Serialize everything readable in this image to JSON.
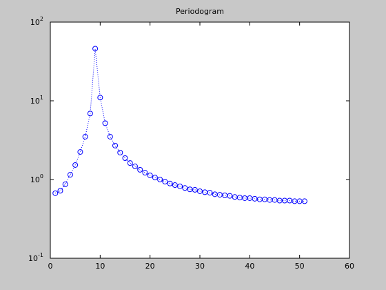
{
  "chart_data": {
    "type": "line",
    "title": "Periodogram",
    "x": [
      1,
      2,
      3,
      4,
      5,
      6,
      7,
      8,
      9,
      10,
      11,
      12,
      13,
      14,
      15,
      16,
      17,
      18,
      19,
      20,
      21,
      22,
      23,
      24,
      25,
      26,
      27,
      28,
      29,
      30,
      31,
      32,
      33,
      34,
      35,
      36,
      37,
      38,
      39,
      40,
      41,
      42,
      43,
      44,
      45,
      46,
      47,
      48,
      49,
      50,
      51
    ],
    "series": [
      {
        "color": "#0000ff",
        "values": [
          0.67,
          0.72,
          0.87,
          1.15,
          1.53,
          2.24,
          3.5,
          6.9,
          46,
          11,
          5.2,
          3.5,
          2.7,
          2.2,
          1.87,
          1.62,
          1.47,
          1.33,
          1.22,
          1.13,
          1.06,
          1.0,
          0.94,
          0.89,
          0.85,
          0.82,
          0.78,
          0.75,
          0.74,
          0.71,
          0.69,
          0.68,
          0.65,
          0.64,
          0.63,
          0.62,
          0.6,
          0.59,
          0.58,
          0.58,
          0.57,
          0.56,
          0.56,
          0.55,
          0.55,
          0.54,
          0.54,
          0.54,
          0.53,
          0.53,
          0.53
        ]
      }
    ],
    "xlim": [
      0,
      60
    ],
    "xticks": [
      0,
      10,
      20,
      30,
      40,
      50,
      60
    ],
    "ylim": [
      0.1,
      100
    ],
    "ylog": true,
    "yticks": [
      {
        "value": 0.1,
        "label": "10",
        "exponent": "-1"
      },
      {
        "value": 1,
        "label": "10",
        "exponent": "0"
      },
      {
        "value": 10,
        "label": "10",
        "exponent": "1"
      },
      {
        "value": 100,
        "label": "10",
        "exponent": "2"
      }
    ]
  }
}
